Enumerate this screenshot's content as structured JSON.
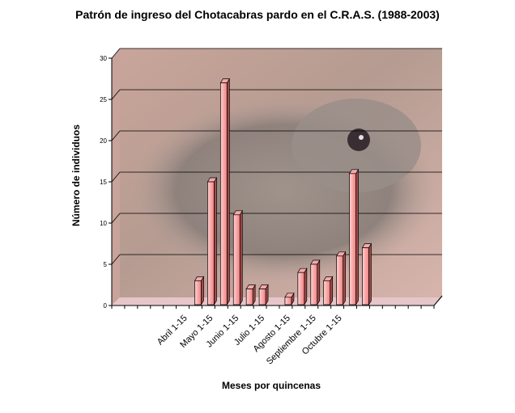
{
  "chart_data": {
    "type": "bar",
    "title": "Patrón de ingreso del Chotacabras pardo en el C.R.A.S. (1988-2003)",
    "xlabel": "Meses por quincenas",
    "ylabel": "Número de individuos",
    "ylim": [
      0,
      30
    ],
    "yticks": [
      0,
      5,
      10,
      15,
      20,
      25,
      30
    ],
    "grid": true,
    "background": "photo of a red-necked nightjar",
    "bar_color": "#f08080",
    "categories": [
      "",
      "",
      "",
      "",
      "",
      "Abril 1-15",
      "",
      "Mayo 1-15",
      "",
      "Junio 1-15",
      "",
      "Julio 1-15",
      "",
      "Agosto 1-15",
      "",
      "Septiembre 1-15",
      "",
      "Octubre 1-15",
      "",
      "",
      "",
      "",
      "",
      "",
      ""
    ],
    "values": [
      0,
      0,
      0,
      0,
      0,
      0,
      3,
      15,
      27,
      11,
      2,
      2,
      0,
      1,
      4,
      5,
      3,
      6,
      16,
      7,
      0,
      0,
      0,
      0,
      0
    ]
  }
}
